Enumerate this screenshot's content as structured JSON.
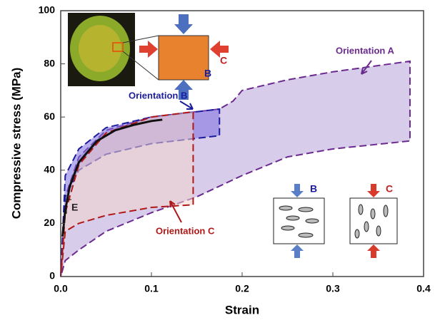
{
  "chart_data": {
    "type": "area",
    "xlabel": "Strain",
    "ylabel": "Compressive stress (MPa)",
    "xlim": [
      0,
      0.4
    ],
    "ylim": [
      0,
      100
    ],
    "xticks": [
      {
        "value": 0,
        "label": "0.0"
      },
      0.1,
      0.2,
      0.3,
      0.4
    ],
    "yticks": [
      0,
      20,
      40,
      60,
      80,
      100
    ],
    "series": [
      {
        "name": "Orientation A",
        "color": "#6b2a8e",
        "fill": "#b6a3d8",
        "x": [
          0,
          0.005,
          0.02,
          0.05,
          0.1,
          0.15,
          0.175,
          0.19,
          0.2,
          0.25,
          0.3,
          0.385,
          0.385,
          0.3,
          0.25,
          0.2,
          0.15,
          0.1,
          0.05,
          0.02,
          0.005,
          0
        ],
        "values": [
          0,
          30,
          45,
          55,
          60,
          62,
          63,
          66,
          70,
          74,
          77,
          81,
          51,
          48,
          45,
          38,
          30,
          24,
          17,
          10,
          6,
          0
        ]
      },
      {
        "name": "Orientation B",
        "color": "#1c1c9e",
        "fill": "#7d6ee0",
        "x": [
          0,
          0.005,
          0.02,
          0.05,
          0.1,
          0.15,
          0.175,
          0.175,
          0.15,
          0.1,
          0.05,
          0.02,
          0.005,
          0
        ],
        "values": [
          0,
          38,
          48,
          56,
          60,
          62,
          63,
          53,
          52,
          50,
          46,
          40,
          30,
          0
        ]
      },
      {
        "name": "Orientation C",
        "color": "#b01818",
        "fill": "#f3d3cc",
        "x": [
          0,
          0.005,
          0.02,
          0.05,
          0.1,
          0.146,
          0.146,
          0.1,
          0.05,
          0.02,
          0.005,
          0
        ],
        "values": [
          0,
          24,
          42,
          54,
          60,
          62,
          27,
          26,
          23,
          20,
          17,
          0
        ]
      },
      {
        "color": "#111111",
        "x": [
          0.002,
          0.005,
          0.01,
          0.02,
          0.04,
          0.06,
          0.08,
          0.1,
          0.112
        ],
        "values": [
          15,
          25,
          34,
          43,
          51,
          55,
          57,
          58.5,
          59
        ]
      }
    ],
    "annotations": [
      "E",
      "B",
      "C",
      "B",
      "C"
    ]
  }
}
